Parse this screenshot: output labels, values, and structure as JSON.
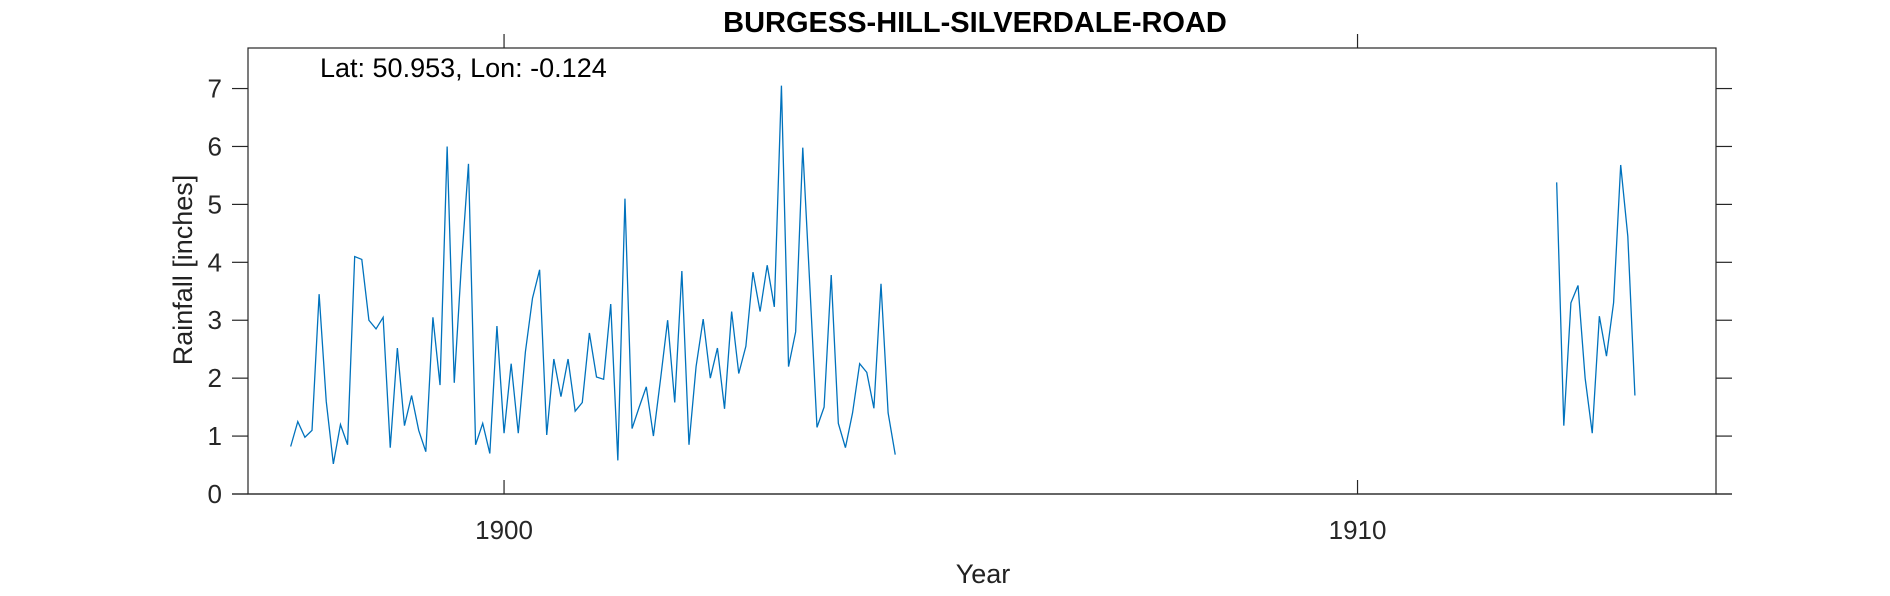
{
  "chart_data": {
    "type": "line",
    "title": "BURGESS-HILL-SILVERDALE-ROAD",
    "annotation": "Lat: 50.953, Lon: -0.124",
    "xlabel": "Year",
    "ylabel": "Rainfall [inches]",
    "xlim": [
      1897.0,
      1914.2
    ],
    "ylim": [
      0,
      7.7
    ],
    "xticks": [
      1900,
      1910
    ],
    "xtick_labels": [
      "1900",
      "1910"
    ],
    "yticks": [
      0,
      1,
      2,
      3,
      4,
      5,
      6,
      7
    ],
    "ytick_labels": [
      "0",
      "1",
      "2",
      "3",
      "4",
      "5",
      "6",
      "7"
    ],
    "grid": false,
    "line_color": "#0072BD",
    "series": [
      {
        "segments": [
          {
            "start": [
              1897,
              7
            ],
            "values": [
              0.82,
              1.25,
              0.98,
              1.1,
              3.45,
              1.6,
              0.52,
              1.2,
              0.85,
              4.1,
              4.05,
              3.0,
              2.85,
              3.05,
              0.8,
              2.52,
              1.18,
              1.7,
              1.1,
              0.73,
              3.05,
              1.88,
              6.0,
              1.92,
              3.95,
              5.7,
              0.85,
              1.22,
              0.7,
              2.9,
              1.05,
              2.25,
              1.05,
              2.45,
              3.38,
              3.87,
              1.02,
              2.33,
              1.68,
              2.33,
              1.43,
              1.58,
              2.78,
              2.02,
              1.98,
              3.28,
              0.58,
              5.1,
              1.13,
              1.5,
              1.85,
              1.0,
              1.98,
              3.0,
              1.58,
              3.85,
              0.85,
              2.2,
              3.02,
              2.0,
              2.52,
              1.47,
              3.15,
              2.08,
              2.55,
              3.83,
              3.15,
              3.95,
              3.23,
              7.05,
              2.2,
              2.8,
              5.98,
              3.58,
              1.15,
              1.5,
              3.78,
              1.22,
              0.8,
              1.4,
              2.25,
              2.1,
              1.48,
              3.63,
              1.4,
              0.68
            ]
          },
          {
            "start": [
              1912,
              5
            ],
            "values": [
              5.38,
              1.18,
              3.3,
              3.6,
              2.0,
              1.05,
              3.07,
              2.38,
              3.3,
              5.68,
              4.45,
              1.7
            ]
          }
        ]
      }
    ]
  }
}
